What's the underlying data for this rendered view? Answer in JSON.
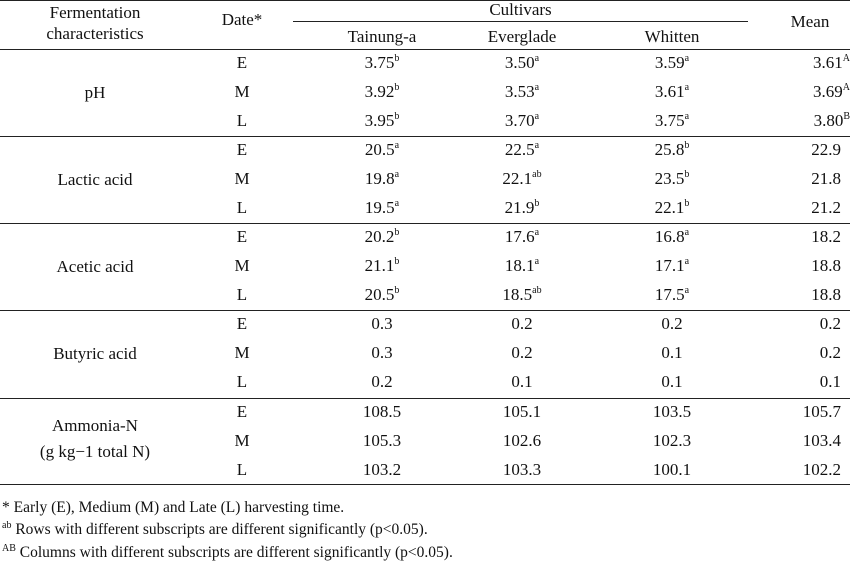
{
  "header": {
    "fermentation_line1": "Fermentation",
    "fermentation_line2": "characteristics",
    "date": "Date*",
    "cultivars": "Cultivars",
    "mean": "Mean",
    "cultivar_names": [
      "Tainung-a",
      "Everglade",
      "Whitten"
    ]
  },
  "groups": [
    {
      "label": "pH",
      "label_line2": "",
      "rows": [
        {
          "date": "E",
          "v": [
            [
              "3.75",
              "b"
            ],
            [
              "3.50",
              "a"
            ],
            [
              "3.59",
              "a"
            ]
          ],
          "mean": [
            "3.61",
            "A"
          ]
        },
        {
          "date": "M",
          "v": [
            [
              "3.92",
              "b"
            ],
            [
              "3.53",
              "a"
            ],
            [
              "3.61",
              "a"
            ]
          ],
          "mean": [
            "3.69",
            "A"
          ]
        },
        {
          "date": "L",
          "v": [
            [
              "3.95",
              "b"
            ],
            [
              "3.70",
              "a"
            ],
            [
              "3.75",
              "a"
            ]
          ],
          "mean": [
            "3.80",
            "B"
          ]
        }
      ]
    },
    {
      "label": "Lactic acid",
      "label_line2": "",
      "rows": [
        {
          "date": "E",
          "v": [
            [
              "20.5",
              "a"
            ],
            [
              "22.5",
              "a"
            ],
            [
              "25.8",
              "b"
            ]
          ],
          "mean": [
            "22.9",
            ""
          ]
        },
        {
          "date": "M",
          "v": [
            [
              "19.8",
              "a"
            ],
            [
              "22.1",
              "ab"
            ],
            [
              "23.5",
              "b"
            ]
          ],
          "mean": [
            "21.8",
            ""
          ]
        },
        {
          "date": "L",
          "v": [
            [
              "19.5",
              "a"
            ],
            [
              "21.9",
              "b"
            ],
            [
              "22.1",
              "b"
            ]
          ],
          "mean": [
            "21.2",
            ""
          ]
        }
      ]
    },
    {
      "label": "Acetic acid",
      "label_line2": "",
      "rows": [
        {
          "date": "E",
          "v": [
            [
              "20.2",
              "b"
            ],
            [
              "17.6",
              "a"
            ],
            [
              "16.8",
              "a"
            ]
          ],
          "mean": [
            "18.2",
            ""
          ]
        },
        {
          "date": "M",
          "v": [
            [
              "21.1",
              "b"
            ],
            [
              "18.1",
              "a"
            ],
            [
              "17.1",
              "a"
            ]
          ],
          "mean": [
            "18.8",
            ""
          ]
        },
        {
          "date": "L",
          "v": [
            [
              "20.5",
              "b"
            ],
            [
              "18.5",
              "ab"
            ],
            [
              "17.5",
              "a"
            ]
          ],
          "mean": [
            "18.8",
            ""
          ]
        }
      ]
    },
    {
      "label": "Butyric acid",
      "label_line2": "",
      "rows": [
        {
          "date": "E",
          "v": [
            [
              "0.3",
              ""
            ],
            [
              "0.2",
              ""
            ],
            [
              "0.2",
              ""
            ]
          ],
          "mean": [
            "0.2",
            ""
          ]
        },
        {
          "date": "M",
          "v": [
            [
              "0.3",
              ""
            ],
            [
              "0.2",
              ""
            ],
            [
              "0.1",
              ""
            ]
          ],
          "mean": [
            "0.2",
            ""
          ]
        },
        {
          "date": "L",
          "v": [
            [
              "0.2",
              ""
            ],
            [
              "0.1",
              ""
            ],
            [
              "0.1",
              ""
            ]
          ],
          "mean": [
            "0.1",
            ""
          ]
        }
      ]
    },
    {
      "label": "Ammonia-N",
      "label_line2": "(g kg−1 total N)",
      "rows": [
        {
          "date": "E",
          "v": [
            [
              "108.5",
              ""
            ],
            [
              "105.1",
              ""
            ],
            [
              "103.5",
              ""
            ]
          ],
          "mean": [
            "105.7",
            ""
          ]
        },
        {
          "date": "M",
          "v": [
            [
              "105.3",
              ""
            ],
            [
              "102.6",
              ""
            ],
            [
              "102.3",
              ""
            ]
          ],
          "mean": [
            "103.4",
            ""
          ]
        },
        {
          "date": "L",
          "v": [
            [
              "103.2",
              ""
            ],
            [
              "103.3",
              ""
            ],
            [
              "100.1",
              ""
            ]
          ],
          "mean": [
            "102.2",
            ""
          ]
        }
      ]
    }
  ],
  "footnotes": [
    {
      "mark": "*",
      "text": "Early (E), Medium (M) and Late (L) harvesting time."
    },
    {
      "mark": "ab",
      "text": "Rows with different subscripts are different significantly (p<0.05)."
    },
    {
      "mark": "AB",
      "text": "Columns with different subscripts are different significantly (p<0.05)."
    }
  ]
}
